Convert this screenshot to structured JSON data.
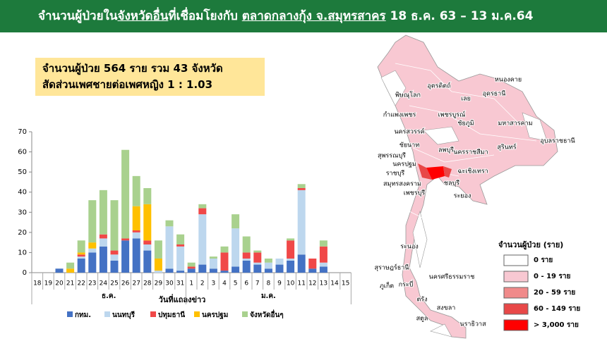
{
  "header": {
    "title_parts": [
      "จำนวนผู้ป่วยใน",
      "จังหวัดอื่น",
      "ที่เชื่อมโยงกับ ",
      "ตลาดกลางกุ้ง จ.สมุทรสาคร",
      " 18 ธ.ค. 63 – 13 ม.ค.64"
    ]
  },
  "info_box": {
    "lines": [
      "จำนวนผู้ป่วย 564 ราย รวม 43  จังหวัด",
      "สัดส่วนเพศชายต่อเพศหญิง 1 : 1.03"
    ]
  },
  "chart_data": {
    "type": "bar",
    "stacked": true,
    "categories": [
      "18",
      "19",
      "20",
      "21",
      "22",
      "23",
      "24",
      "25",
      "26",
      "27",
      "28",
      "29",
      "30",
      "31",
      "1",
      "2",
      "3",
      "4",
      "5",
      "6",
      "7",
      "8",
      "9",
      "10",
      "11",
      "12",
      "13",
      "14",
      "15"
    ],
    "month_labels": [
      "ธ.ค.",
      "ม.ค."
    ],
    "x_label": "วันที่แถลงข่าว",
    "ylim": [
      0,
      70
    ],
    "yticks": [
      0,
      10,
      20,
      30,
      40,
      50,
      60,
      70
    ],
    "series": [
      {
        "name": "กทม.",
        "color": "#4472c4",
        "values": [
          0,
          0,
          2,
          0,
          7,
          10,
          13,
          6,
          16,
          17,
          11,
          0,
          2,
          1,
          2,
          4,
          2,
          1,
          3,
          6,
          4,
          2,
          4,
          6,
          9,
          2,
          3,
          0,
          0
        ]
      },
      {
        "name": "นนทบุรี",
        "color": "#bdd7ee",
        "values": [
          0,
          0,
          0,
          0,
          1,
          2,
          4,
          3,
          0,
          3,
          3,
          1,
          21,
          12,
          0,
          25,
          5,
          0,
          19,
          1,
          1,
          3,
          3,
          1,
          32,
          0,
          2,
          0,
          0
        ]
      },
      {
        "name": "ปทุมธานี",
        "color": "#f04848",
        "values": [
          0,
          0,
          0,
          0,
          1,
          0,
          2,
          2,
          1,
          1,
          2,
          0,
          0,
          1,
          1,
          3,
          0,
          9,
          0,
          3,
          5,
          0,
          0,
          9,
          1,
          5,
          8,
          0,
          0
        ]
      },
      {
        "name": "นครปฐม",
        "color": "#ffc000",
        "values": [
          0,
          0,
          0,
          2,
          1,
          3,
          0,
          0,
          0,
          12,
          18,
          6,
          0,
          0,
          0,
          0,
          0,
          0,
          0,
          0,
          0,
          0,
          0,
          0,
          0,
          0,
          0,
          0,
          0
        ]
      },
      {
        "name": "จังหวัดอื่นๆ",
        "color": "#a9d18e",
        "values": [
          0,
          0,
          0,
          3,
          6,
          21,
          22,
          25,
          44,
          15,
          8,
          9,
          3,
          5,
          2,
          2,
          1,
          3,
          7,
          8,
          1,
          2,
          0,
          1,
          2,
          0,
          3,
          0,
          0
        ]
      }
    ]
  },
  "map": {
    "provinces": [
      "หนองคาย",
      "อุดรธานี",
      "อุตรดิตถ์",
      "พิษณุโลก",
      "เลย",
      "กำแพงเพชร",
      "เพชรบูรณ์",
      "ชัยภูมิ",
      "มหาสารคาม",
      "อุบลราชธานี",
      "นครสวรรค์",
      "สุรินทร์",
      "ชัยนาท",
      "ลพบุรี",
      "นครราชสีมา",
      "สุพรรณบุรี",
      "นครปฐม",
      "ราชบุรี",
      "ฉะเชิงเทรา",
      "สมุทรสงคราม",
      "ชลบุรี",
      "เพชรบุรี",
      "ระยอง",
      "ระนอง",
      "สุราษฎร์ธานี",
      "นครศรีธรรมราช",
      "ภูเก็ต",
      "กระบี่",
      "ตรัง",
      "สงขลา",
      "สตูล",
      "นราธิวาส"
    ],
    "legend": {
      "title": "จำนวนผู้ป่วย (ราย)",
      "items": [
        {
          "label": "0 ราย",
          "color": "#ffffff"
        },
        {
          "label": "0 - 19 ราย",
          "color": "#f8c8d2"
        },
        {
          "label": "20 - 59 ราย",
          "color": "#f08a8a"
        },
        {
          "label": "60 - 149 ราย",
          "color": "#e84848"
        },
        {
          "label": "> 3,000 ราย",
          "color": "#ff0000"
        }
      ]
    }
  }
}
